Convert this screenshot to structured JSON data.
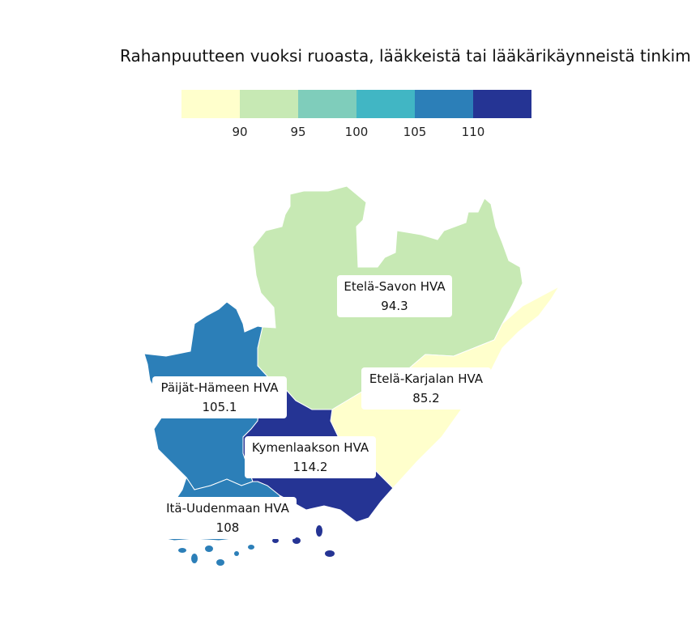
{
  "title": "Rahanpuutteen vuoksi ruoasta, lääkkeistä tai lääkärikäynneistä tinkim",
  "legend": {
    "colors": [
      "#ffffcc",
      "#c7e9b4",
      "#7fcdbb",
      "#41b6c4",
      "#2c7fb8",
      "#253494"
    ],
    "ticks": [
      "90",
      "95",
      "100",
      "105",
      "110"
    ]
  },
  "regions": [
    {
      "name": "Etelä-Savon HVA",
      "value": "94.3",
      "color": "#c7e9b4"
    },
    {
      "name": "Etelä-Karjalan HVA",
      "value": "85.2",
      "color": "#ffffcc"
    },
    {
      "name": "Päijät-Hämeen HVA",
      "value": "105.1",
      "color": "#2c7fb8"
    },
    {
      "name": "Kymenlaakson HVA",
      "value": "114.2",
      "color": "#253494"
    },
    {
      "name": "Itä-Uudenmaan HVA",
      "value": "108",
      "color": "#2c7fb8"
    }
  ]
}
